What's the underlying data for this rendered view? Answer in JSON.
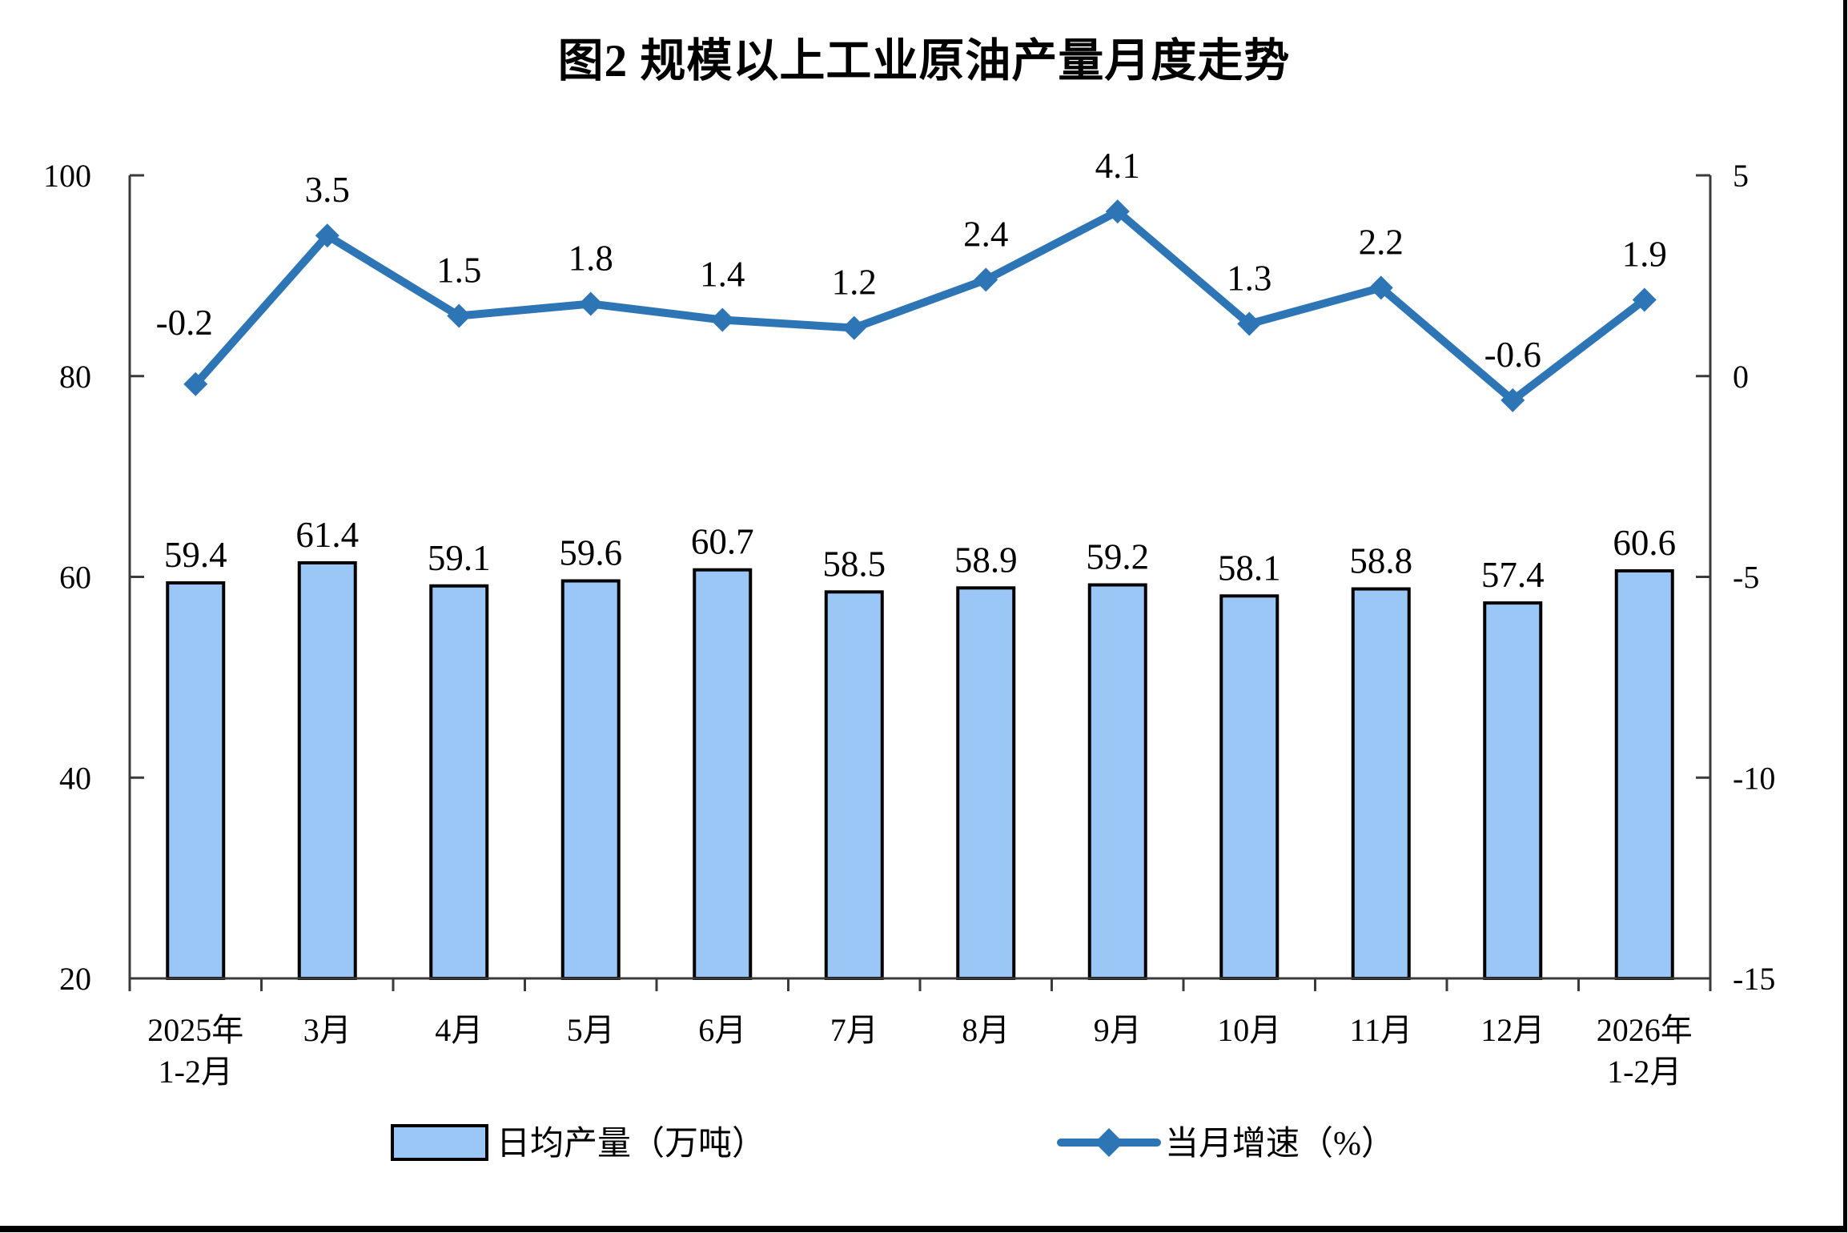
{
  "figure": {
    "title": "图2 规模以上工业原油产量月度走势"
  },
  "chart_data": {
    "type": "combo-bar-line",
    "title": "图2 规模以上工业原油产量月度走势",
    "categories": [
      "2025年\n1-2月",
      "3月",
      "4月",
      "5月",
      "6月",
      "7月",
      "8月",
      "9月",
      "10月",
      "11月",
      "12月",
      "2026年\n1-2月"
    ],
    "series": [
      {
        "name": "日均产量（万吨）",
        "type": "bar",
        "axis": "left",
        "color": "#9BC7F6",
        "border_color": "#000000",
        "values": [
          59.4,
          61.4,
          59.1,
          59.6,
          60.7,
          58.5,
          58.9,
          59.2,
          58.1,
          58.8,
          57.4,
          60.6
        ]
      },
      {
        "name": "当月增速（%）",
        "type": "line",
        "axis": "right",
        "marker": "diamond",
        "color": "#2E75B6",
        "values": [
          -0.2,
          3.5,
          1.5,
          1.8,
          1.4,
          1.2,
          2.4,
          4.1,
          1.3,
          2.2,
          -0.6,
          1.9
        ]
      }
    ],
    "left_axis": {
      "min": 20,
      "max": 100,
      "ticks": [
        20,
        40,
        60,
        80,
        100
      ]
    },
    "right_axis": {
      "min": -15,
      "max": 5,
      "ticks": [
        -15,
        -10,
        -5,
        0,
        5
      ]
    },
    "gridlines": false,
    "data_labels": true,
    "legend_position": "bottom",
    "colors": {
      "bar_fill": "#9BC7F6",
      "bar_border": "#000000",
      "line": "#2E75B6",
      "axis": "#3a3a3a",
      "text": "#000000"
    }
  }
}
